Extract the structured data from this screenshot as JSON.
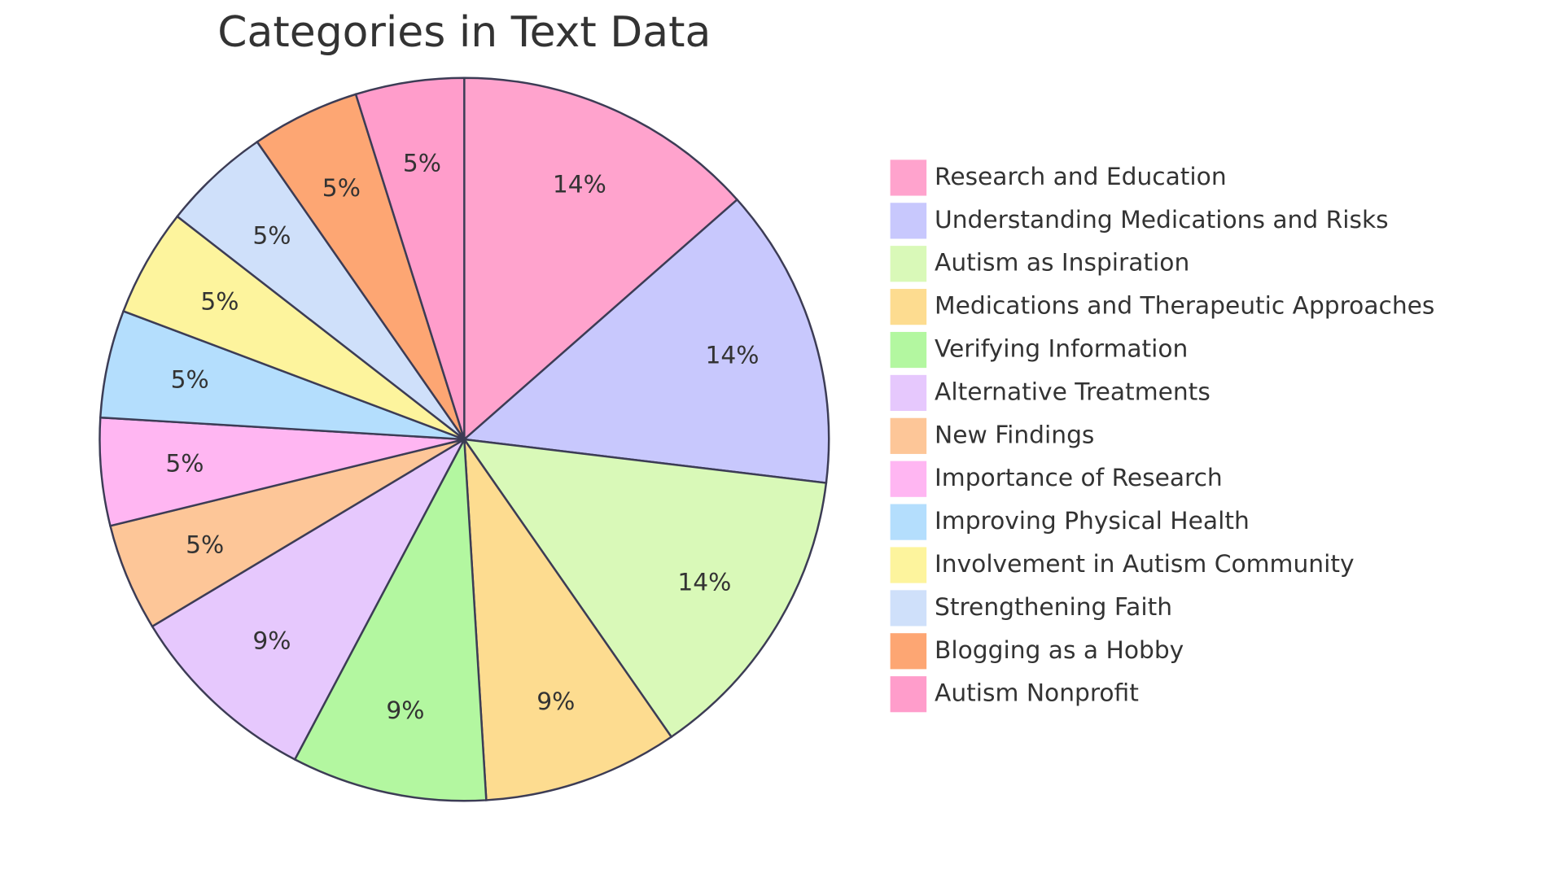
{
  "chart_data": {
    "type": "pie",
    "title": "Categories in Text Data",
    "categories": [
      "Research and Education",
      "Understanding Medications and Risks",
      "Autism as Inspiration",
      "Medications and Therapeutic Approaches",
      "Verifying Information",
      "Alternative Treatments",
      "New Findings",
      "Importance of Research",
      "Improving Physical Health",
      "Involvement in Autism Community",
      "Strengthening Faith",
      "Blogging as a Hobby",
      "Autism Nonprofit"
    ],
    "values": [
      14,
      14,
      14,
      9,
      9,
      9,
      5,
      5,
      5,
      5,
      5,
      5,
      5
    ],
    "value_labels": [
      "14%",
      "14%",
      "14%",
      "9%",
      "9%",
      "9%",
      "5%",
      "5%",
      "5%",
      "5%",
      "5%",
      "5%",
      "5%"
    ],
    "colors": [
      "#ffa3cd",
      "#c8c8fd",
      "#d9f9b8",
      "#fddc90",
      "#b3f7a0",
      "#e6c8fd",
      "#fdc698",
      "#ffb6f2",
      "#b4defd",
      "#fdf49d",
      "#cfe0fa",
      "#fda673",
      "#ff9dcb"
    ],
    "legend": "right"
  }
}
